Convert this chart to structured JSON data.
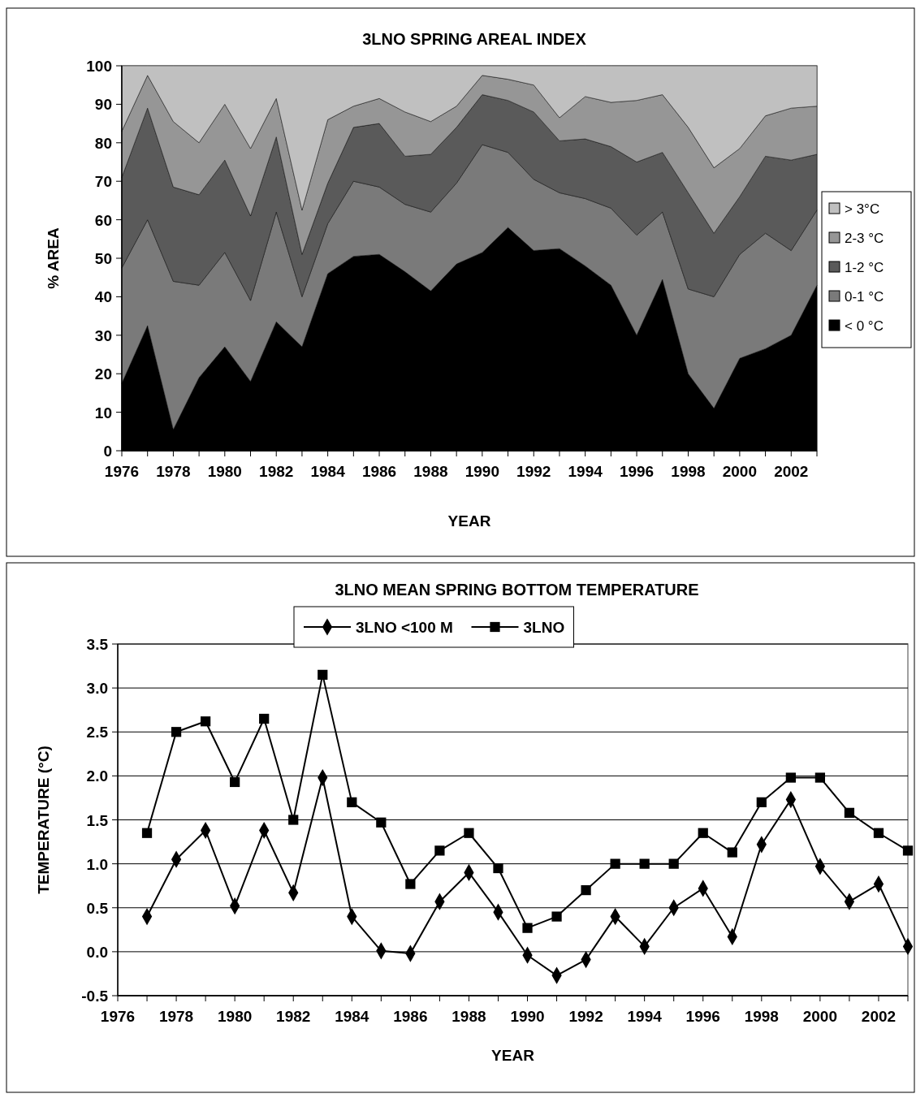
{
  "chart_data": [
    {
      "type": "area",
      "stacked": true,
      "title": "3LNO SPRING AREAL INDEX",
      "xlabel": "YEAR",
      "ylabel": "% AREA",
      "x": [
        1976,
        1977,
        1978,
        1979,
        1980,
        1981,
        1982,
        1983,
        1984,
        1985,
        1986,
        1987,
        1988,
        1989,
        1990,
        1991,
        1992,
        1993,
        1994,
        1995,
        1996,
        1997,
        1998,
        1999,
        2000,
        2001,
        2002,
        2003
      ],
      "series": [
        {
          "name": "< 0 °C",
          "color": "#000000",
          "values": [
            17.5,
            32.5,
            5.5,
            19,
            27,
            18,
            33.5,
            27,
            46,
            50.5,
            51,
            46.5,
            41.5,
            48.5,
            51.5,
            58,
            52,
            52.5,
            48,
            43,
            30,
            44.5,
            20,
            11,
            24,
            26.5,
            30,
            43
          ]
        },
        {
          "name": "0-1 °C",
          "color": "#7a7a7a",
          "values": [
            30,
            27.5,
            38.5,
            24,
            24.5,
            21,
            28.5,
            13,
            13,
            19.5,
            17.5,
            17.5,
            20.5,
            21,
            28,
            19.5,
            18.5,
            14.5,
            17.5,
            20,
            26,
            17.5,
            22,
            29,
            27,
            30,
            22,
            19.5
          ]
        },
        {
          "name": "1-2 °C",
          "color": "#5a5a5a",
          "values": [
            23.5,
            29,
            24.5,
            23.5,
            24,
            22,
            19.5,
            11,
            10.5,
            14,
            16.5,
            12.5,
            15,
            14.5,
            13,
            13.5,
            17.5,
            13.5,
            15.5,
            16,
            19,
            15.5,
            25,
            16.5,
            15,
            20,
            23.5,
            14.5
          ]
        },
        {
          "name": "2-3 °C",
          "color": "#969696",
          "values": [
            12,
            8.5,
            17,
            13.5,
            14.5,
            17.5,
            10,
            11.5,
            16.5,
            5.5,
            6.5,
            11.5,
            8.5,
            5.5,
            5,
            5.5,
            7,
            6,
            11,
            11.5,
            16,
            15,
            17,
            17,
            12.5,
            10.5,
            13.5,
            12.5
          ]
        },
        {
          "name": "> 3°C",
          "color": "#c0c0c0",
          "values": [
            17,
            2.5,
            14.5,
            20,
            10,
            21.5,
            8.5,
            37.5,
            14,
            10.5,
            8.5,
            12,
            14.5,
            10.5,
            2.5,
            3.5,
            5,
            13.5,
            8,
            9.5,
            9,
            7.5,
            16,
            26.5,
            21.5,
            13,
            11,
            10.5
          ]
        }
      ],
      "xlim": [
        1976,
        2003
      ],
      "xticks": [
        1976,
        {
          "value": 1977,
          "label": null
        },
        1978,
        {
          "value": 1979,
          "label": null
        },
        1980,
        {
          "value": 1981,
          "label": null
        },
        1982,
        {
          "value": 1983,
          "label": null
        },
        1984,
        {
          "value": 1985,
          "label": null
        },
        1986,
        {
          "value": 1987,
          "label": null
        },
        1988,
        {
          "value": 1989,
          "label": null
        },
        1990,
        {
          "value": 1991,
          "label": null
        },
        1992,
        {
          "value": 1993,
          "label": null
        },
        1994,
        {
          "value": 1995,
          "label": null
        },
        1996,
        {
          "value": 1997,
          "label": null
        },
        1998,
        {
          "value": 1999,
          "label": null
        },
        2000,
        {
          "value": 2001,
          "label": null
        },
        2002,
        {
          "value": 2003,
          "label": null
        }
      ],
      "ylim": [
        0,
        100
      ],
      "yticks": [
        0,
        10,
        20,
        30,
        40,
        50,
        60,
        70,
        80,
        90,
        100
      ],
      "legend": "right"
    },
    {
      "type": "line",
      "title": "3LNO MEAN SPRING BOTTOM TEMPERATURE",
      "xlabel": "YEAR",
      "ylabel": "TEMPERATURE (°C)",
      "x": [
        1977,
        1978,
        1979,
        1980,
        1981,
        1982,
        1983,
        1984,
        1985,
        1986,
        1987,
        1988,
        1989,
        1990,
        1991,
        1992,
        1993,
        1994,
        1995,
        1996,
        1997,
        1998,
        1999,
        2000,
        2001,
        2002,
        2003
      ],
      "series": [
        {
          "name": "3LNO <100 M",
          "color": "#000000",
          "marker": "diamond",
          "values": [
            0.4,
            1.05,
            1.38,
            0.52,
            1.38,
            0.67,
            1.98,
            0.4,
            0.01,
            -0.02,
            0.57,
            0.9,
            0.45,
            -0.04,
            -0.27,
            -0.09,
            0.4,
            0.06,
            0.5,
            0.72,
            0.17,
            1.22,
            1.73,
            0.97,
            0.57,
            0.77,
            0.06
          ]
        },
        {
          "name": "3LNO",
          "color": "#000000",
          "marker": "square",
          "values": [
            1.35,
            2.5,
            2.62,
            1.93,
            2.65,
            1.5,
            3.15,
            1.7,
            1.47,
            0.77,
            1.15,
            1.35,
            0.95,
            0.27,
            0.4,
            0.7,
            1.0,
            1.0,
            1.0,
            1.35,
            1.13,
            1.7,
            1.98,
            1.98,
            1.58,
            1.35,
            1.15
          ]
        }
      ],
      "xlim": [
        1976,
        2003
      ],
      "xticks": [
        1976,
        {
          "value": 1977,
          "label": null
        },
        1978,
        {
          "value": 1979,
          "label": null
        },
        1980,
        {
          "value": 1981,
          "label": null
        },
        1982,
        {
          "value": 1983,
          "label": null
        },
        1984,
        {
          "value": 1985,
          "label": null
        },
        1986,
        {
          "value": 1987,
          "label": null
        },
        1988,
        {
          "value": 1989,
          "label": null
        },
        1990,
        {
          "value": 1991,
          "label": null
        },
        1992,
        {
          "value": 1993,
          "label": null
        },
        1994,
        {
          "value": 1995,
          "label": null
        },
        1996,
        {
          "value": 1997,
          "label": null
        },
        1998,
        {
          "value": 1999,
          "label": null
        },
        2000,
        {
          "value": 2001,
          "label": null
        },
        2002,
        {
          "value": 2003,
          "label": null
        }
      ],
      "ylim": [
        -0.5,
        3.5
      ],
      "yticks": [
        {
          "value": -0.5,
          "label": "-0.5"
        },
        {
          "value": 0,
          "label": "0.0"
        },
        {
          "value": 0.5,
          "label": "0.5"
        },
        {
          "value": 1,
          "label": "1.0"
        },
        {
          "value": 1.5,
          "label": "1.5"
        },
        {
          "value": 2,
          "label": "2.0"
        },
        {
          "value": 2.5,
          "label": "2.5"
        },
        {
          "value": 3,
          "label": "3.0"
        },
        {
          "value": 3.5,
          "label": "3.5"
        }
      ],
      "grid": "y",
      "legend": "top"
    }
  ]
}
